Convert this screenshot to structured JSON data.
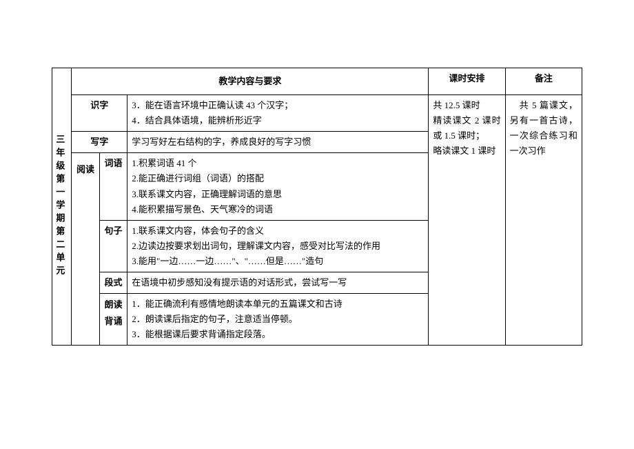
{
  "sideTitle": "三年级第一学期第二单元",
  "headers": {
    "content": "教学内容与要求",
    "time": "课时安排",
    "note": "备注"
  },
  "rows": {
    "shizi": {
      "label": "识字",
      "content": "3．能在语言环境中正确认读 43 个汉字；\n4．结合具体语境，能辨析形近字"
    },
    "xiezi": {
      "label": "写字",
      "content": "学习写好左右结构的字，养成良好的写字习惯"
    },
    "yuedu": {
      "label": "阅读",
      "ciyu": {
        "label": "词语",
        "content": "1.积累词语 41 个\n2.能正确进行词组（词语）的搭配\n3.联系课文内容，正确理解词语的意思\n4.能积累描写景色、天气寒冷的词语"
      },
      "juzi": {
        "label": "句子",
        "content": "1.联系课文内容，体会句子的含义\n2.边读边按要求划出词句，理解课文内容，感受对比写法的作用\n3.能用\"一边……一边……\"、\"……但是……\"造句"
      },
      "duanshi": {
        "label": "段式",
        "content": "在语境中初步感知没有提示语的对话形式，尝试写一写"
      },
      "langdu": {
        "label": "朗读背诵",
        "content": "1．能正确流利有感情地朗读本单元的五篇课文和古诗\n2．朗读课后指定的句子，注意适当停顿。\n3．能根据课后要求背诵指定段落。"
      }
    }
  },
  "time": "共 12.5 课时\n精读课文 2 课时或 1.5 课时；\n略读课文 1 课时",
  "note": "　共 5 篇课文，另有一首古诗，一次综合练习和一次习作"
}
